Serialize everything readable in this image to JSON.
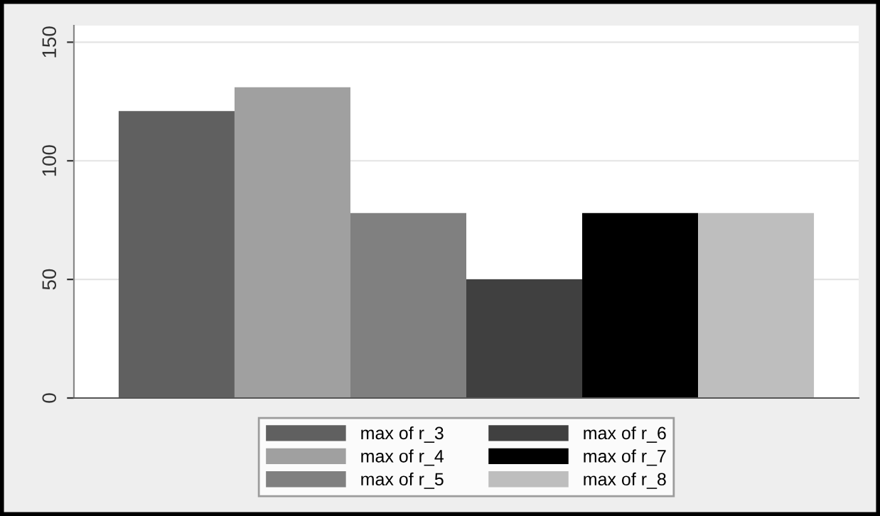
{
  "chart_data": {
    "type": "bar",
    "categories": [
      null
    ],
    "series": [
      {
        "name": "max of r_3",
        "color": "#606060",
        "values": [
          121
        ]
      },
      {
        "name": "max of r_4",
        "color": "#a0a0a0",
        "values": [
          131
        ]
      },
      {
        "name": "max of r_5",
        "color": "#808080",
        "values": [
          78
        ]
      },
      {
        "name": "max of r_6",
        "color": "#404040",
        "values": [
          50
        ]
      },
      {
        "name": "max of r_7",
        "color": "#000000",
        "values": [
          78
        ]
      },
      {
        "name": "max of r_8",
        "color": "#bebebe",
        "values": [
          78
        ]
      }
    ],
    "ylim": [
      0,
      157
    ],
    "yticks": [
      0,
      50,
      100,
      150
    ],
    "grid": "y",
    "legend": "bottom"
  }
}
